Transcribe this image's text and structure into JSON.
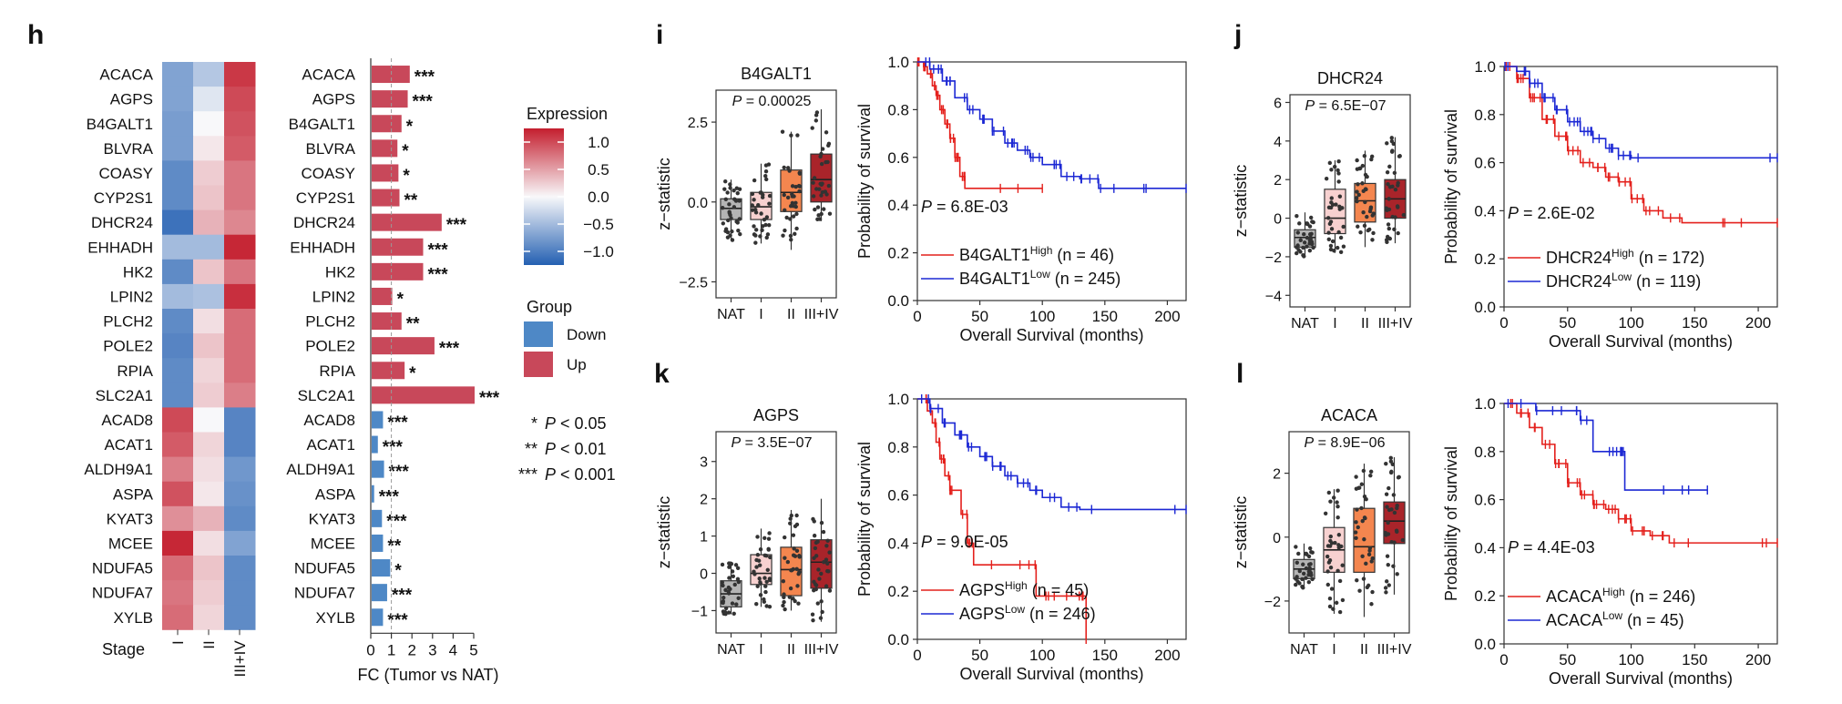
{
  "panels": {
    "h": "h",
    "i": "i",
    "j": "j",
    "k": "k",
    "l": "l"
  },
  "chart_data": [
    {
      "id": "h-heatmap",
      "type": "heatmap",
      "genes": [
        "ACACA",
        "AGPS",
        "B4GALT1",
        "BLVRA",
        "COASY",
        "CYP2S1",
        "DHCR24",
        "EHHADH",
        "HK2",
        "LPIN2",
        "PLCH2",
        "POLE2",
        "RPIA",
        "SLC2A1",
        "ACAD8",
        "ACAT1",
        "ALDH9A1",
        "ASPA",
        "KYAT3",
        "MCEE",
        "NDUFA5",
        "NDUFA7",
        "XYLB"
      ],
      "columns": [
        "I",
        "II",
        "III+IV"
      ],
      "col_label": "Stage",
      "values": [
        [
          -0.7,
          -0.4,
          1.1
        ],
        [
          -0.7,
          -0.15,
          1.0
        ],
        [
          -0.75,
          0.0,
          0.95
        ],
        [
          -0.75,
          0.1,
          0.9
        ],
        [
          -0.9,
          0.25,
          0.75
        ],
        [
          -0.9,
          0.3,
          0.75
        ],
        [
          -1.1,
          0.4,
          0.65
        ],
        [
          -0.5,
          -0.5,
          1.2
        ],
        [
          -0.9,
          0.3,
          0.75
        ],
        [
          -0.5,
          -0.45,
          1.15
        ],
        [
          -0.9,
          0.15,
          0.8
        ],
        [
          -0.95,
          0.3,
          0.8
        ],
        [
          -0.9,
          0.2,
          0.8
        ],
        [
          -0.9,
          0.25,
          0.7
        ],
        [
          1.0,
          0.0,
          -0.95
        ],
        [
          0.9,
          0.2,
          -0.95
        ],
        [
          0.7,
          0.15,
          -0.8
        ],
        [
          0.95,
          0.1,
          -0.85
        ],
        [
          0.6,
          0.4,
          -0.9
        ],
        [
          1.2,
          0.15,
          -0.7
        ],
        [
          0.8,
          0.3,
          -0.9
        ],
        [
          0.75,
          0.25,
          -0.9
        ],
        [
          0.8,
          0.2,
          -0.9
        ]
      ],
      "legend": {
        "title": "Expression",
        "ticks": [
          1.0,
          0.5,
          0.0,
          -0.5,
          -1.0
        ],
        "tick_labels": [
          "1.0",
          "0.5",
          "0.0",
          "−0.5",
          "−1.0"
        ]
      },
      "group_legend": {
        "title": "Group",
        "items": [
          {
            "label": "Down",
            "color": "#4e88c6"
          },
          {
            "label": "Up",
            "color": "#c8485a"
          }
        ]
      }
    },
    {
      "id": "h-bar",
      "type": "bar",
      "orientation": "horizontal",
      "categories": [
        "ACACA",
        "AGPS",
        "B4GALT1",
        "BLVRA",
        "COASY",
        "CYP2S1",
        "DHCR24",
        "EHHADH",
        "HK2",
        "LPIN2",
        "PLCH2",
        "POLE2",
        "RPIA",
        "SLC2A1",
        "ACAD8",
        "ACAT1",
        "ALDH9A1",
        "ASPA",
        "KYAT3",
        "MCEE",
        "NDUFA5",
        "NDUFA7",
        "XYLB"
      ],
      "values": [
        1.85,
        1.75,
        1.45,
        1.25,
        1.3,
        1.35,
        3.4,
        2.5,
        2.5,
        1.0,
        1.45,
        3.05,
        1.6,
        5.0,
        0.55,
        0.3,
        0.6,
        0.12,
        0.5,
        0.55,
        0.9,
        0.75,
        0.55
      ],
      "groups": [
        "Up",
        "Up",
        "Up",
        "Up",
        "Up",
        "Up",
        "Up",
        "Up",
        "Up",
        "Up",
        "Up",
        "Up",
        "Up",
        "Up",
        "Down",
        "Down",
        "Down",
        "Down",
        "Down",
        "Down",
        "Down",
        "Down",
        "Down"
      ],
      "significance": [
        "***",
        "***",
        "*",
        "*",
        "*",
        "**",
        "***",
        "***",
        "***",
        "*",
        "**",
        "***",
        "*",
        "***",
        "***",
        "***",
        "***",
        "***",
        "***",
        "**",
        "*",
        "***",
        "***"
      ],
      "xlabel": "FC (Tumor vs NAT)",
      "xticks": [
        0,
        1,
        2,
        3,
        4,
        5
      ],
      "xlim": [
        0,
        5.2
      ],
      "reference_line": 1,
      "sig_legend": [
        {
          "sym": "*",
          "text": "P < 0.05"
        },
        {
          "sym": "**",
          "text": "P < 0.01"
        },
        {
          "sym": "***",
          "text": "P < 0.001"
        }
      ]
    },
    {
      "id": "i-box",
      "type": "box",
      "title": "B4GALT1",
      "p_text": "P = 0.00025",
      "ylabel": "z−statistic",
      "categories": [
        "NAT",
        "I",
        "II",
        "III+IV"
      ],
      "boxes": [
        [
          -1.2,
          -0.55,
          -0.2,
          0.1,
          0.7
        ],
        [
          -1.3,
          -0.55,
          -0.15,
          0.3,
          1.2
        ],
        [
          -1.5,
          -0.3,
          0.3,
          1.0,
          2.2
        ],
        [
          -0.6,
          0.0,
          0.7,
          1.5,
          2.9
        ]
      ],
      "ylim": [
        -3.0,
        3.5
      ],
      "yticks": [
        -2.5,
        0.0,
        2.5
      ],
      "ytick_labels": [
        "−2.5",
        "0.0",
        "2.5"
      ]
    },
    {
      "id": "i-km",
      "type": "line",
      "subtype": "kaplan-meier",
      "ylabel": "Probability of survival",
      "xlabel": "Overall Survival (months)",
      "xlim": [
        0,
        215
      ],
      "ylim": [
        0,
        1
      ],
      "xticks": [
        0,
        50,
        100,
        150,
        200
      ],
      "yticks": [
        0.0,
        0.2,
        0.4,
        0.6,
        0.8,
        1.0
      ],
      "p_text": "P = 6.8E-03",
      "series": [
        {
          "name": "B4GALT1",
          "sup": "High",
          "n": "(n = 46)",
          "color": "#e4201c",
          "points": [
            [
              0,
              1
            ],
            [
              5,
              0.98
            ],
            [
              8,
              0.95
            ],
            [
              12,
              0.9
            ],
            [
              15,
              0.86
            ],
            [
              18,
              0.8
            ],
            [
              22,
              0.74
            ],
            [
              26,
              0.68
            ],
            [
              30,
              0.6
            ],
            [
              34,
              0.52
            ],
            [
              38,
              0.47
            ],
            [
              100,
              0.47
            ]
          ]
        },
        {
          "name": "B4GALT1",
          "sup": "Low",
          "n": "(n = 245)",
          "color": "#1c28d4",
          "points": [
            [
              0,
              1
            ],
            [
              10,
              0.97
            ],
            [
              20,
              0.92
            ],
            [
              30,
              0.85
            ],
            [
              40,
              0.8
            ],
            [
              50,
              0.76
            ],
            [
              60,
              0.71
            ],
            [
              70,
              0.66
            ],
            [
              80,
              0.63
            ],
            [
              90,
              0.6
            ],
            [
              100,
              0.57
            ],
            [
              115,
              0.52
            ],
            [
              130,
              0.51
            ],
            [
              145,
              0.47
            ],
            [
              215,
              0.47
            ]
          ]
        }
      ]
    },
    {
      "id": "j-box",
      "type": "box",
      "title": "DHCR24",
      "p_text": "P = 6.5E−07",
      "ylabel": "z−statistic",
      "categories": [
        "NAT",
        "I",
        "II",
        "III+IV"
      ],
      "boxes": [
        [
          -2.0,
          -1.5,
          -1.0,
          -0.6,
          0.3
        ],
        [
          -1.8,
          -0.8,
          0.0,
          1.5,
          3.0
        ],
        [
          -1.5,
          -0.2,
          0.9,
          1.8,
          3.5
        ],
        [
          -1.3,
          0.0,
          1.0,
          2.0,
          4.2
        ]
      ],
      "ylim": [
        -4.6,
        6.4
      ],
      "yticks": [
        -4,
        -2,
        0,
        2,
        4,
        6
      ],
      "ytick_labels": [
        "−4",
        "−2",
        "0",
        "2",
        "4",
        "6"
      ]
    },
    {
      "id": "j-km",
      "type": "line",
      "subtype": "kaplan-meier",
      "ylabel": "Probability of survival",
      "xlabel": "Overall Survival (months)",
      "xlim": [
        0,
        215
      ],
      "ylim": [
        0,
        1
      ],
      "xticks": [
        0,
        50,
        100,
        150,
        200
      ],
      "yticks": [
        0.0,
        0.2,
        0.4,
        0.6,
        0.8,
        1.0
      ],
      "p_text": "P = 2.6E-02",
      "series": [
        {
          "name": "DHCR24",
          "sup": "High",
          "n": "(n = 172)",
          "color": "#e4201c",
          "points": [
            [
              0,
              1
            ],
            [
              10,
              0.95
            ],
            [
              20,
              0.87
            ],
            [
              30,
              0.78
            ],
            [
              40,
              0.71
            ],
            [
              50,
              0.65
            ],
            [
              60,
              0.6
            ],
            [
              70,
              0.58
            ],
            [
              80,
              0.54
            ],
            [
              90,
              0.52
            ],
            [
              100,
              0.45
            ],
            [
              110,
              0.4
            ],
            [
              125,
              0.37
            ],
            [
              140,
              0.35
            ],
            [
              215,
              0.35
            ]
          ]
        },
        {
          "name": "DHCR24",
          "sup": "Low",
          "n": "(n = 119)",
          "color": "#1c28d4",
          "points": [
            [
              0,
              1
            ],
            [
              10,
              0.98
            ],
            [
              20,
              0.93
            ],
            [
              30,
              0.87
            ],
            [
              40,
              0.82
            ],
            [
              50,
              0.77
            ],
            [
              60,
              0.73
            ],
            [
              70,
              0.7
            ],
            [
              80,
              0.66
            ],
            [
              90,
              0.63
            ],
            [
              100,
              0.62
            ],
            [
              215,
              0.62
            ]
          ]
        }
      ]
    },
    {
      "id": "k-box",
      "type": "box",
      "title": "AGPS",
      "p_text": "P = 3.5E−07",
      "ylabel": "z−statistic",
      "categories": [
        "NAT",
        "I",
        "II",
        "III+IV"
      ],
      "boxes": [
        [
          -1.1,
          -0.9,
          -0.55,
          -0.2,
          0.3
        ],
        [
          -0.9,
          -0.3,
          0.0,
          0.5,
          1.2
        ],
        [
          -1.0,
          -0.6,
          0.1,
          0.7,
          1.7
        ],
        [
          -1.3,
          -0.4,
          0.3,
          0.9,
          2.0
        ]
      ],
      "ylim": [
        -1.6,
        3.8
      ],
      "yticks": [
        -1,
        0,
        1,
        2,
        3
      ],
      "ytick_labels": [
        "−1",
        "0",
        "1",
        "2",
        "3"
      ]
    },
    {
      "id": "k-km",
      "type": "line",
      "subtype": "kaplan-meier",
      "ylabel": "Probability of survival",
      "xlabel": "Overall Survival (months)",
      "xlim": [
        0,
        215
      ],
      "ylim": [
        0,
        1
      ],
      "xticks": [
        0,
        50,
        100,
        150,
        200
      ],
      "yticks": [
        0.0,
        0.2,
        0.4,
        0.6,
        0.8,
        1.0
      ],
      "p_text": "P = 9.0E-05",
      "series": [
        {
          "name": "AGPS",
          "sup": "High",
          "n": "(n = 45)",
          "color": "#e4201c",
          "points": [
            [
              0,
              1
            ],
            [
              8,
              0.95
            ],
            [
              12,
              0.9
            ],
            [
              15,
              0.82
            ],
            [
              18,
              0.75
            ],
            [
              22,
              0.68
            ],
            [
              26,
              0.62
            ],
            [
              35,
              0.52
            ],
            [
              40,
              0.4
            ],
            [
              45,
              0.31
            ],
            [
              95,
              0.18
            ],
            [
              125,
              0.18
            ],
            [
              135,
              0.0
            ]
          ]
        },
        {
          "name": "AGPS",
          "sup": "Low",
          "n": "(n = 246)",
          "color": "#1c28d4",
          "points": [
            [
              0,
              1
            ],
            [
              10,
              0.96
            ],
            [
              20,
              0.9
            ],
            [
              30,
              0.85
            ],
            [
              40,
              0.8
            ],
            [
              50,
              0.76
            ],
            [
              60,
              0.72
            ],
            [
              70,
              0.68
            ],
            [
              80,
              0.65
            ],
            [
              90,
              0.62
            ],
            [
              100,
              0.59
            ],
            [
              115,
              0.55
            ],
            [
              130,
              0.54
            ],
            [
              215,
              0.54
            ]
          ]
        }
      ]
    },
    {
      "id": "l-box",
      "type": "box",
      "title": "ACACA",
      "p_text": "P = 8.9E−06",
      "ylabel": "z−statistic",
      "categories": [
        "NAT",
        "I",
        "II",
        "III+IV"
      ],
      "boxes": [
        [
          -1.6,
          -1.3,
          -1.0,
          -0.7,
          -0.2
        ],
        [
          -2.4,
          -1.1,
          -0.4,
          0.3,
          1.5
        ],
        [
          -2.5,
          -1.1,
          -0.3,
          0.9,
          2.3
        ],
        [
          -1.8,
          -0.2,
          0.5,
          1.1,
          2.5
        ]
      ],
      "ylim": [
        -3.0,
        3.3
      ],
      "yticks": [
        -2,
        0,
        2
      ],
      "ytick_labels": [
        "−2",
        "0",
        "2"
      ]
    },
    {
      "id": "l-km",
      "type": "line",
      "subtype": "kaplan-meier",
      "ylabel": "Probability of survival",
      "xlabel": "Overall Survival (months)",
      "xlim": [
        0,
        215
      ],
      "ylim": [
        0,
        1
      ],
      "xticks": [
        0,
        50,
        100,
        150,
        200
      ],
      "yticks": [
        0.0,
        0.2,
        0.4,
        0.6,
        0.8,
        1.0
      ],
      "p_text": "P = 4.4E-03",
      "series": [
        {
          "name": "ACACA",
          "sup": "High",
          "n": "(n = 246)",
          "color": "#e4201c",
          "points": [
            [
              0,
              1
            ],
            [
              10,
              0.96
            ],
            [
              20,
              0.9
            ],
            [
              30,
              0.83
            ],
            [
              40,
              0.75
            ],
            [
              50,
              0.67
            ],
            [
              60,
              0.62
            ],
            [
              70,
              0.58
            ],
            [
              80,
              0.56
            ],
            [
              90,
              0.52
            ],
            [
              100,
              0.47
            ],
            [
              115,
              0.45
            ],
            [
              130,
              0.42
            ],
            [
              215,
              0.42
            ]
          ]
        },
        {
          "name": "ACACA",
          "sup": "Low",
          "n": "(n = 45)",
          "color": "#1c28d4",
          "points": [
            [
              0,
              1
            ],
            [
              25,
              0.97
            ],
            [
              45,
              0.97
            ],
            [
              60,
              0.93
            ],
            [
              70,
              0.8
            ],
            [
              90,
              0.8
            ],
            [
              95,
              0.64
            ],
            [
              160,
              0.64
            ]
          ]
        }
      ]
    }
  ]
}
